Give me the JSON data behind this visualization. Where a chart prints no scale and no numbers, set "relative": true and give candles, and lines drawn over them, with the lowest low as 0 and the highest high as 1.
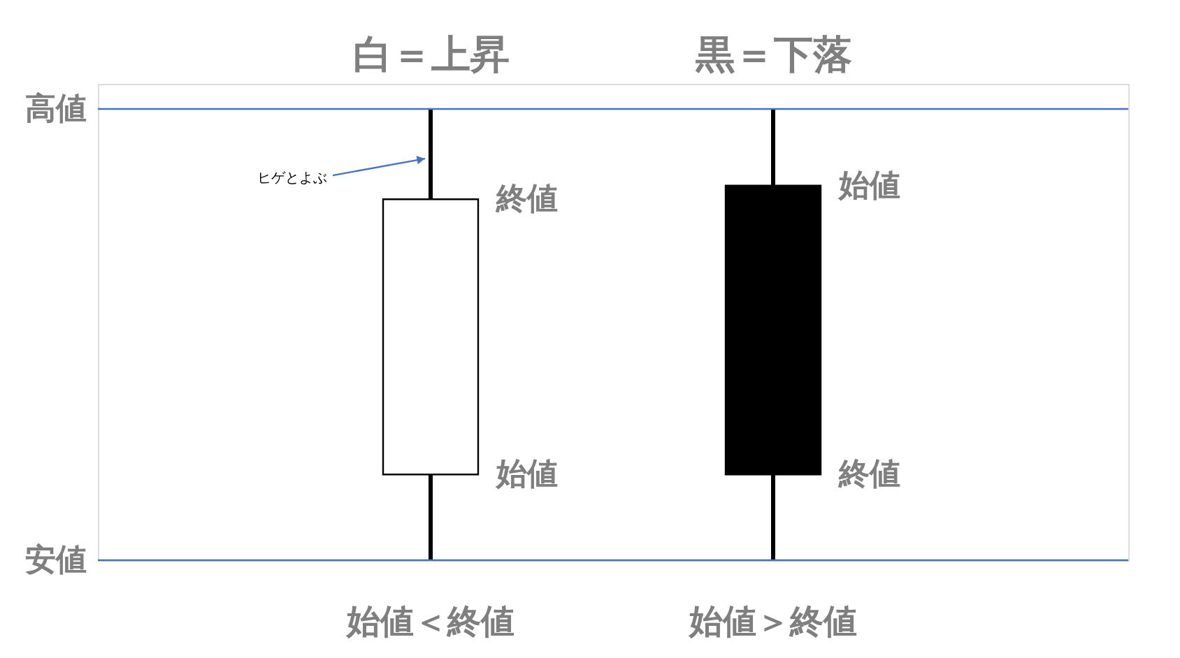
{
  "chart_data": {
    "type": "candlestick",
    "relative": true,
    "categories": [
      "白＝上昇",
      "黒＝下落"
    ],
    "ohlc": [
      [
        0.19,
        1,
        0,
        0.8
      ],
      [
        0.83,
        1,
        0,
        0.19
      ]
    ],
    "colors": [
      "#ffffff",
      "#000000"
    ],
    "ref_lines": [
      {
        "axis": "y",
        "value": 1,
        "label": "高値",
        "color": "#4472c4"
      },
      {
        "axis": "y",
        "value": 0,
        "label": "安値",
        "color": "#4472c4"
      }
    ],
    "annotations": [
      {
        "text": "ヒゲとよぶ",
        "x": "白＝上昇",
        "y": 0.89
      },
      {
        "text": "終値",
        "x": "白＝上昇",
        "y": 0.8
      },
      {
        "text": "始値",
        "x": "白＝上昇",
        "y": 0.19
      },
      {
        "text": "始値",
        "x": "黒＝下落",
        "y": 0.83
      },
      {
        "text": "終値",
        "x": "黒＝下落",
        "y": 0.19
      },
      "始値＜終値",
      "始値＞終値"
    ]
  }
}
